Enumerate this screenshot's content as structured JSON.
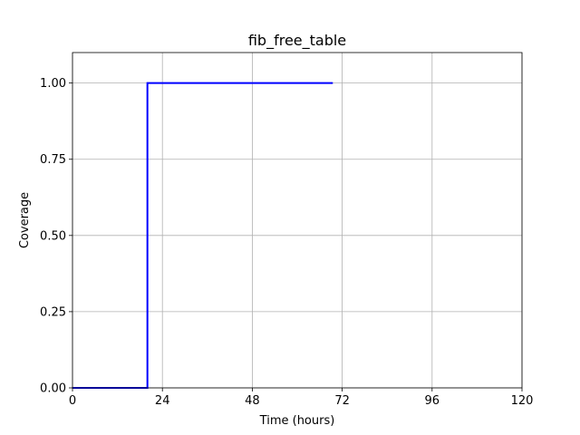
{
  "chart_data": {
    "type": "line",
    "title": "fib_free_table",
    "xlabel": "Time (hours)",
    "ylabel": "Coverage",
    "xlim": [
      0,
      120
    ],
    "ylim": [
      0,
      1.1
    ],
    "xticks": [
      0,
      24,
      48,
      72,
      96,
      120
    ],
    "xtick_labels": [
      "0",
      "24",
      "48",
      "72",
      "96",
      "120"
    ],
    "yticks": [
      0,
      0.25,
      0.5,
      0.75,
      1.0
    ],
    "ytick_labels": [
      "0.00",
      "0.25",
      "0.50",
      "0.75",
      "1.00"
    ],
    "grid": true,
    "series": [
      {
        "color": "#0000ff",
        "step": "post",
        "x": [
          0,
          20,
          20,
          69.5
        ],
        "y": [
          0,
          0,
          1.0,
          1.0
        ]
      }
    ]
  }
}
